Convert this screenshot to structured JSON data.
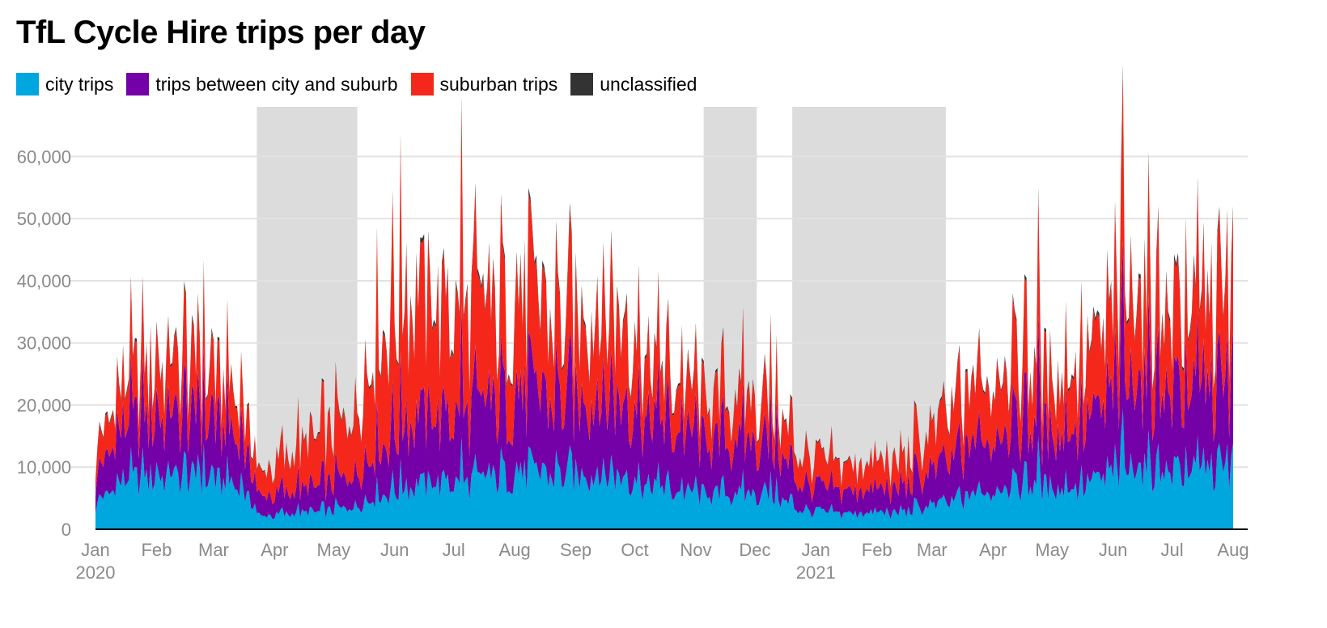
{
  "chart_data": {
    "type": "area",
    "stacked": true,
    "title": "TfL Cycle Hire trips per day",
    "ylim": [
      0,
      68000
    ],
    "yticks": [
      0,
      10000,
      20000,
      30000,
      40000,
      50000,
      60000
    ],
    "ytick_labels": [
      "0",
      "10,000",
      "20,000",
      "30,000",
      "40,000",
      "50,000",
      "60,000"
    ],
    "x_range": [
      "2020-01-01",
      "2021-08-01"
    ],
    "xticks": [
      {
        "date": "2020-01-01",
        "label": "Jan",
        "year": "2020"
      },
      {
        "date": "2020-02-01",
        "label": "Feb"
      },
      {
        "date": "2020-03-01",
        "label": "Mar"
      },
      {
        "date": "2020-04-01",
        "label": "Apr"
      },
      {
        "date": "2020-05-01",
        "label": "May"
      },
      {
        "date": "2020-06-01",
        "label": "Jun"
      },
      {
        "date": "2020-07-01",
        "label": "Jul"
      },
      {
        "date": "2020-08-01",
        "label": "Aug"
      },
      {
        "date": "2020-09-01",
        "label": "Sep"
      },
      {
        "date": "2020-10-01",
        "label": "Oct"
      },
      {
        "date": "2020-11-01",
        "label": "Nov"
      },
      {
        "date": "2020-12-01",
        "label": "Dec"
      },
      {
        "date": "2021-01-01",
        "label": "Jan",
        "year": "2021"
      },
      {
        "date": "2021-02-01",
        "label": "Feb"
      },
      {
        "date": "2021-03-01",
        "label": "Mar"
      },
      {
        "date": "2021-04-01",
        "label": "Apr"
      },
      {
        "date": "2021-05-01",
        "label": "May"
      },
      {
        "date": "2021-06-01",
        "label": "Jun"
      },
      {
        "date": "2021-07-01",
        "label": "Jul"
      },
      {
        "date": "2021-08-01",
        "label": "Aug"
      }
    ],
    "shaded_periods": [
      {
        "start": "2020-03-23",
        "end": "2020-05-13"
      },
      {
        "start": "2020-11-05",
        "end": "2020-12-02"
      },
      {
        "start": "2020-12-20",
        "end": "2021-03-08"
      }
    ],
    "grid": true,
    "legend_position": "top-left",
    "series": [
      {
        "name": "city trips",
        "color": "#00a6de",
        "points": [
          [
            "2020-01-01",
            3500
          ],
          [
            "2020-01-15",
            8000
          ],
          [
            "2020-02-01",
            8500
          ],
          [
            "2020-02-15",
            8500
          ],
          [
            "2020-03-01",
            8000
          ],
          [
            "2020-03-15",
            6500
          ],
          [
            "2020-03-25",
            2000
          ],
          [
            "2020-04-10",
            2500
          ],
          [
            "2020-04-25",
            2800
          ],
          [
            "2020-05-10",
            3500
          ],
          [
            "2020-05-25",
            5500
          ],
          [
            "2020-06-10",
            7000
          ],
          [
            "2020-06-25",
            7500
          ],
          [
            "2020-07-10",
            7500
          ],
          [
            "2020-07-25",
            8500
          ],
          [
            "2020-08-10",
            9000
          ],
          [
            "2020-08-25",
            8500
          ],
          [
            "2020-09-10",
            9000
          ],
          [
            "2020-09-25",
            8500
          ],
          [
            "2020-10-10",
            6500
          ],
          [
            "2020-10-25",
            6000
          ],
          [
            "2020-11-10",
            5500
          ],
          [
            "2020-11-25",
            5500
          ],
          [
            "2020-12-10",
            5500
          ],
          [
            "2020-12-25",
            3000
          ],
          [
            "2021-01-10",
            2500
          ],
          [
            "2021-01-25",
            2500
          ],
          [
            "2021-02-10",
            2500
          ],
          [
            "2021-02-25",
            3500
          ],
          [
            "2021-03-10",
            4000
          ],
          [
            "2021-03-25",
            5500
          ],
          [
            "2021-04-10",
            7000
          ],
          [
            "2021-04-25",
            7000
          ],
          [
            "2021-05-10",
            6500
          ],
          [
            "2021-05-25",
            7500
          ],
          [
            "2021-06-10",
            10000
          ],
          [
            "2021-06-25",
            9500
          ],
          [
            "2021-07-10",
            9000
          ],
          [
            "2021-07-25",
            9500
          ],
          [
            "2021-08-01",
            9000
          ]
        ]
      },
      {
        "name": "trips between city and suburb",
        "color": "#7400a8",
        "points": [
          [
            "2020-01-01",
            3500
          ],
          [
            "2020-01-15",
            9000
          ],
          [
            "2020-02-01",
            9500
          ],
          [
            "2020-02-15",
            9500
          ],
          [
            "2020-03-01",
            9000
          ],
          [
            "2020-03-15",
            7500
          ],
          [
            "2020-03-25",
            3000
          ],
          [
            "2020-04-10",
            3500
          ],
          [
            "2020-04-25",
            4000
          ],
          [
            "2020-05-10",
            5000
          ],
          [
            "2020-05-25",
            8000
          ],
          [
            "2020-06-10",
            11000
          ],
          [
            "2020-06-25",
            10500
          ],
          [
            "2020-07-10",
            11000
          ],
          [
            "2020-07-25",
            11500
          ],
          [
            "2020-08-10",
            12500
          ],
          [
            "2020-08-25",
            11500
          ],
          [
            "2020-09-10",
            12500
          ],
          [
            "2020-09-25",
            12000
          ],
          [
            "2020-10-10",
            10000
          ],
          [
            "2020-10-25",
            9500
          ],
          [
            "2020-11-10",
            8000
          ],
          [
            "2020-11-25",
            8000
          ],
          [
            "2020-12-10",
            8000
          ],
          [
            "2020-12-25",
            4000
          ],
          [
            "2021-01-10",
            3500
          ],
          [
            "2021-01-25",
            3500
          ],
          [
            "2021-02-10",
            3500
          ],
          [
            "2021-02-25",
            5000
          ],
          [
            "2021-03-10",
            6000
          ],
          [
            "2021-03-25",
            8000
          ],
          [
            "2021-04-10",
            9500
          ],
          [
            "2021-04-25",
            9000
          ],
          [
            "2021-05-10",
            9000
          ],
          [
            "2021-05-25",
            10000
          ],
          [
            "2021-06-10",
            14000
          ],
          [
            "2021-06-25",
            13000
          ],
          [
            "2021-07-10",
            12000
          ],
          [
            "2021-07-25",
            12500
          ],
          [
            "2021-08-01",
            11500
          ]
        ]
      },
      {
        "name": "suburban trips",
        "color": "#f5271b",
        "points": [
          [
            "2020-01-01",
            3500
          ],
          [
            "2020-01-15",
            7000
          ],
          [
            "2020-02-01",
            8000
          ],
          [
            "2020-02-15",
            8500
          ],
          [
            "2020-03-01",
            7500
          ],
          [
            "2020-03-15",
            6000
          ],
          [
            "2020-03-25",
            3500
          ],
          [
            "2020-04-10",
            6000
          ],
          [
            "2020-04-25",
            8000
          ],
          [
            "2020-05-10",
            9000
          ],
          [
            "2020-05-25",
            18000
          ],
          [
            "2020-06-10",
            20000
          ],
          [
            "2020-06-25",
            17000
          ],
          [
            "2020-07-10",
            16000
          ],
          [
            "2020-07-25",
            14000
          ],
          [
            "2020-08-10",
            15000
          ],
          [
            "2020-08-25",
            12000
          ],
          [
            "2020-09-10",
            14000
          ],
          [
            "2020-09-25",
            13000
          ],
          [
            "2020-10-10",
            8000
          ],
          [
            "2020-10-25",
            7500
          ],
          [
            "2020-11-10",
            6500
          ],
          [
            "2020-11-25",
            6500
          ],
          [
            "2020-12-10",
            6500
          ],
          [
            "2020-12-25",
            4500
          ],
          [
            "2021-01-10",
            4000
          ],
          [
            "2021-01-25",
            4000
          ],
          [
            "2021-02-10",
            4000
          ],
          [
            "2021-02-25",
            5500
          ],
          [
            "2021-03-10",
            7000
          ],
          [
            "2021-03-25",
            9000
          ],
          [
            "2021-04-10",
            10000
          ],
          [
            "2021-04-25",
            9000
          ],
          [
            "2021-05-10",
            9000
          ],
          [
            "2021-05-25",
            10500
          ],
          [
            "2021-06-10",
            14000
          ],
          [
            "2021-06-25",
            12500
          ],
          [
            "2021-07-10",
            12000
          ],
          [
            "2021-07-25",
            13000
          ],
          [
            "2021-08-01",
            12500
          ]
        ]
      },
      {
        "name": "unclassified",
        "color": "#333333",
        "points": [
          [
            "2020-01-01",
            200
          ],
          [
            "2020-01-15",
            400
          ],
          [
            "2020-02-01",
            400
          ],
          [
            "2020-02-15",
            400
          ],
          [
            "2020-03-01",
            400
          ],
          [
            "2020-03-15",
            300
          ],
          [
            "2020-03-25",
            150
          ],
          [
            "2020-04-10",
            200
          ],
          [
            "2020-04-25",
            250
          ],
          [
            "2020-05-10",
            300
          ],
          [
            "2020-05-25",
            500
          ],
          [
            "2020-06-10",
            600
          ],
          [
            "2020-06-25",
            550
          ],
          [
            "2020-07-10",
            550
          ],
          [
            "2020-07-25",
            550
          ],
          [
            "2020-08-10",
            600
          ],
          [
            "2020-08-25",
            550
          ],
          [
            "2020-09-10",
            600
          ],
          [
            "2020-09-25",
            550
          ],
          [
            "2020-10-10",
            400
          ],
          [
            "2020-10-25",
            400
          ],
          [
            "2020-11-10",
            350
          ],
          [
            "2020-11-25",
            350
          ],
          [
            "2020-12-10",
            350
          ],
          [
            "2020-12-25",
            200
          ],
          [
            "2021-01-10",
            150
          ],
          [
            "2021-01-25",
            150
          ],
          [
            "2021-02-10",
            150
          ],
          [
            "2021-02-25",
            250
          ],
          [
            "2021-03-10",
            300
          ],
          [
            "2021-03-25",
            400
          ],
          [
            "2021-04-10",
            450
          ],
          [
            "2021-04-25",
            450
          ],
          [
            "2021-05-10",
            450
          ],
          [
            "2021-05-25",
            500
          ],
          [
            "2021-06-10",
            650
          ],
          [
            "2021-06-25",
            600
          ],
          [
            "2021-07-10",
            600
          ],
          [
            "2021-07-25",
            600
          ],
          [
            "2021-08-01",
            550
          ]
        ]
      }
    ]
  }
}
